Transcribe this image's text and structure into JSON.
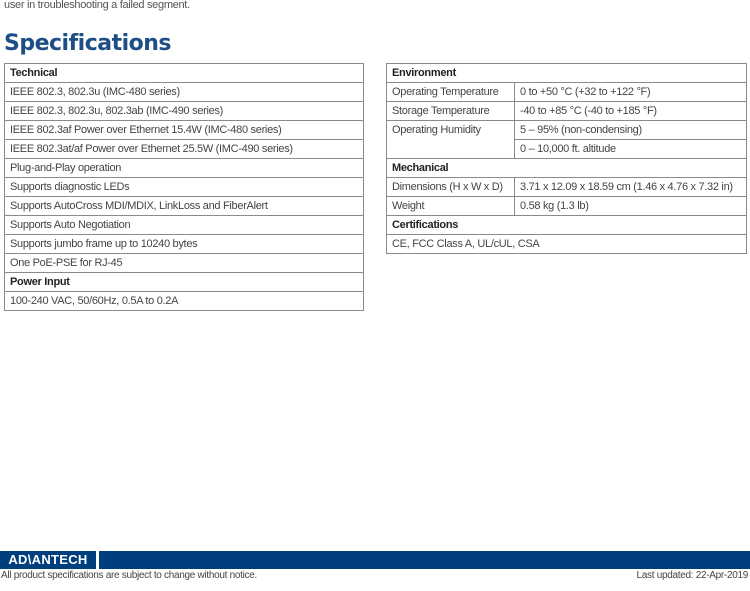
{
  "intro_text": "user in troubleshooting a failed segment.",
  "title": "Specifications",
  "left_table": {
    "technical_header": "Technical",
    "technical": [
      "IEEE 802.3, 802.3u (IMC-480 series)",
      "IEEE 802.3, 802.3u, 802.3ab (IMC-490 series)",
      "IEEE 802.3af Power over Ethernet 15.4W (IMC-480 series)",
      "IEEE 802.3at/af Power over Ethernet 25.5W (IMC-490 series)",
      "Plug-and-Play operation",
      "Supports diagnostic LEDs",
      "Supports AutoCross MDI/MDIX, LinkLoss and FiberAlert",
      "Supports Auto Negotiation",
      "Supports jumbo frame up to 10240 bytes",
      "One PoE-PSE for RJ-45"
    ],
    "power_header": "Power Input",
    "power": [
      "100-240 VAC, 50/60Hz, 0.5A to 0.2A"
    ]
  },
  "right_table": {
    "environment_header": "Environment",
    "environment": [
      {
        "key": "Operating Temperature",
        "value": "0 to +50 °C (+32 to +122 °F)"
      },
      {
        "key": "Storage Temperature",
        "value": "-40 to +85 °C (-40 to +185 °F)"
      },
      {
        "key": "Operating Humidity",
        "value": "5 – 95% (non-condensing)",
        "value2": "0 – 10,000 ft. altitude"
      }
    ],
    "mechanical_header": "Mechanical",
    "mechanical": [
      {
        "key": "Dimensions (H x W x D)",
        "value": "3.71 x 12.09 x 18.59 cm (1.46 x 4.76 x 7.32 in)"
      },
      {
        "key": "Weight",
        "value": "0.58 kg (1.3 lb)"
      }
    ],
    "certifications_header": "Certifications",
    "certifications": "CE, FCC Class A, UL/cUL, CSA"
  },
  "footer": {
    "logo": "AD\\ANTECH",
    "note": "All product specifications are subject to change without notice.",
    "last_updated": "Last updated: 22-Apr-2019",
    "brand_color": "#003f7e"
  }
}
